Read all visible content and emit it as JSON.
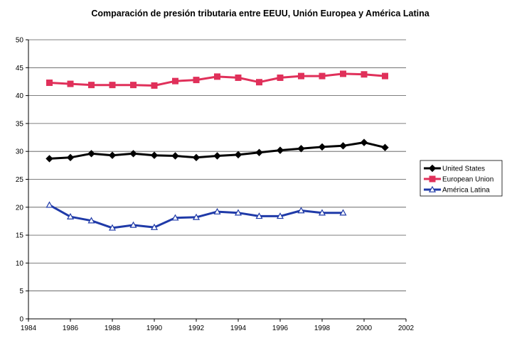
{
  "chart_data": {
    "type": "line",
    "title": "Comparación de presión tributaria entre EEUU, Unión Europea y América Latina",
    "xlabel": "",
    "ylabel": "",
    "xlim": [
      1984,
      2002
    ],
    "ylim": [
      0,
      50
    ],
    "x_ticks": [
      "1984",
      "1986",
      "1988",
      "1990",
      "1992",
      "1994",
      "1996",
      "1998",
      "2000",
      "2002"
    ],
    "y_ticks": [
      "0",
      "5",
      "10",
      "15",
      "20",
      "25",
      "30",
      "35",
      "40",
      "45",
      "50"
    ],
    "grid": "horizontal",
    "legend_position": "right",
    "series": [
      {
        "name": "United States",
        "color": "#000000",
        "marker": "diamond",
        "x": [
          1985,
          1986,
          1987,
          1988,
          1989,
          1990,
          1991,
          1992,
          1993,
          1994,
          1995,
          1996,
          1997,
          1998,
          1999,
          2000,
          2001
        ],
        "values": [
          28.7,
          28.9,
          29.6,
          29.3,
          29.6,
          29.3,
          29.2,
          28.9,
          29.2,
          29.4,
          29.8,
          30.2,
          30.5,
          30.8,
          31.0,
          31.6,
          30.7
        ]
      },
      {
        "name": "European Union",
        "color": "#e0305a",
        "marker": "square",
        "x": [
          1985,
          1986,
          1987,
          1988,
          1989,
          1990,
          1991,
          1992,
          1993,
          1994,
          1995,
          1996,
          1997,
          1998,
          1999,
          2000,
          2001
        ],
        "values": [
          42.3,
          42.1,
          41.9,
          41.9,
          41.9,
          41.8,
          42.6,
          42.8,
          43.4,
          43.2,
          42.4,
          43.2,
          43.5,
          43.5,
          43.9,
          43.8,
          43.5
        ]
      },
      {
        "name": "América Latina",
        "color": "#1f3aa8",
        "marker": "triangle",
        "x": [
          1985,
          1986,
          1987,
          1988,
          1989,
          1990,
          1991,
          1992,
          1993,
          1994,
          1995,
          1996,
          1997,
          1998,
          1999
        ],
        "values": [
          20.4,
          18.3,
          17.6,
          16.3,
          16.8,
          16.4,
          18.1,
          18.2,
          19.2,
          19.0,
          18.4,
          18.4,
          19.4,
          19.0,
          19.0
        ]
      }
    ]
  }
}
